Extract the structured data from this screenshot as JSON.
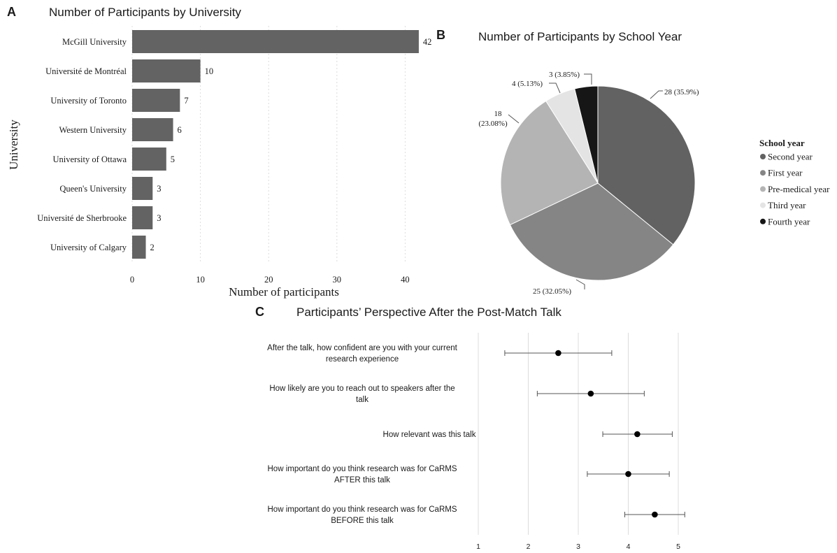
{
  "figure": {
    "panel_a_letter": "A",
    "panel_b_letter": "B",
    "panel_c_letter": "C"
  },
  "colors": {
    "bar": "#636363",
    "grid": "#dcdcdc",
    "second_year": "#626262",
    "first_year": "#858585",
    "pre_medical": "#b4b4b4",
    "third_year": "#e4e4e4",
    "fourth_year": "#161616"
  },
  "chart_data": [
    {
      "type": "bar",
      "orientation": "horizontal",
      "title": "Number of Participants by University",
      "xlabel": "Number of participants",
      "ylabel": "University",
      "categories": [
        "McGill University",
        "Université de Montréal",
        "University of Toronto",
        "Western University",
        "University of Ottawa",
        "Queen's University",
        "Université de Sherbrooke",
        "University of Calgary"
      ],
      "values": [
        42,
        10,
        7,
        6,
        5,
        3,
        3,
        2
      ],
      "data_labels": [
        "42",
        "10",
        "7",
        "6",
        "5",
        "3",
        "3",
        "2"
      ],
      "xticks": [
        0,
        10,
        20,
        30,
        40
      ],
      "xtick_labels": [
        "0",
        "10",
        "20",
        "30",
        "40"
      ],
      "xlim": [
        0,
        43
      ],
      "grid": "vertical dashed"
    },
    {
      "type": "pie",
      "title": "Number of Participants by School Year",
      "legend_title": "School year",
      "legend_position": "right",
      "slices": [
        {
          "name": "Second year",
          "value": 28,
          "label": "28 (35.9%)"
        },
        {
          "name": "First year",
          "value": 25,
          "label": "25 (32.05%)"
        },
        {
          "name": "Pre-medical year",
          "value": 18,
          "label_line1": "18",
          "label_line2": "(23.08%)"
        },
        {
          "name": "Third year",
          "value": 4,
          "label": "4 (5.13%)"
        },
        {
          "name": "Fourth year",
          "value": 3,
          "label": "3 (3.85%)"
        }
      ]
    },
    {
      "type": "scatter",
      "subtype": "point with error bars",
      "title": "Participants’ Perspective After the Post-Match Talk",
      "items": [
        {
          "line1": "After the talk, how confident are you with your current",
          "line2": "research experience",
          "mean": 2.6,
          "low": 1.53,
          "high": 3.67
        },
        {
          "line1": "How likely are you to reach out to speakers after the",
          "line2": "talk",
          "mean": 3.25,
          "low": 2.18,
          "high": 4.32
        },
        {
          "line1": "How relevant was this talk",
          "line2": "",
          "mean": 4.18,
          "low": 3.49,
          "high": 4.88
        },
        {
          "line1": "How important do you think research was for CaRMS",
          "line2": "AFTER this talk",
          "mean": 4.0,
          "low": 3.18,
          "high": 4.82
        },
        {
          "line1": "How important do you think research was for CaRMS",
          "line2": "BEFORE this talk",
          "mean": 4.53,
          "low": 3.93,
          "high": 5.13
        }
      ],
      "xticks": [
        1,
        2,
        3,
        4,
        5
      ],
      "xtick_labels": [
        "1",
        "2",
        "3",
        "4",
        "5"
      ],
      "xlim": [
        1,
        5.2
      ],
      "grid": "vertical"
    }
  ]
}
